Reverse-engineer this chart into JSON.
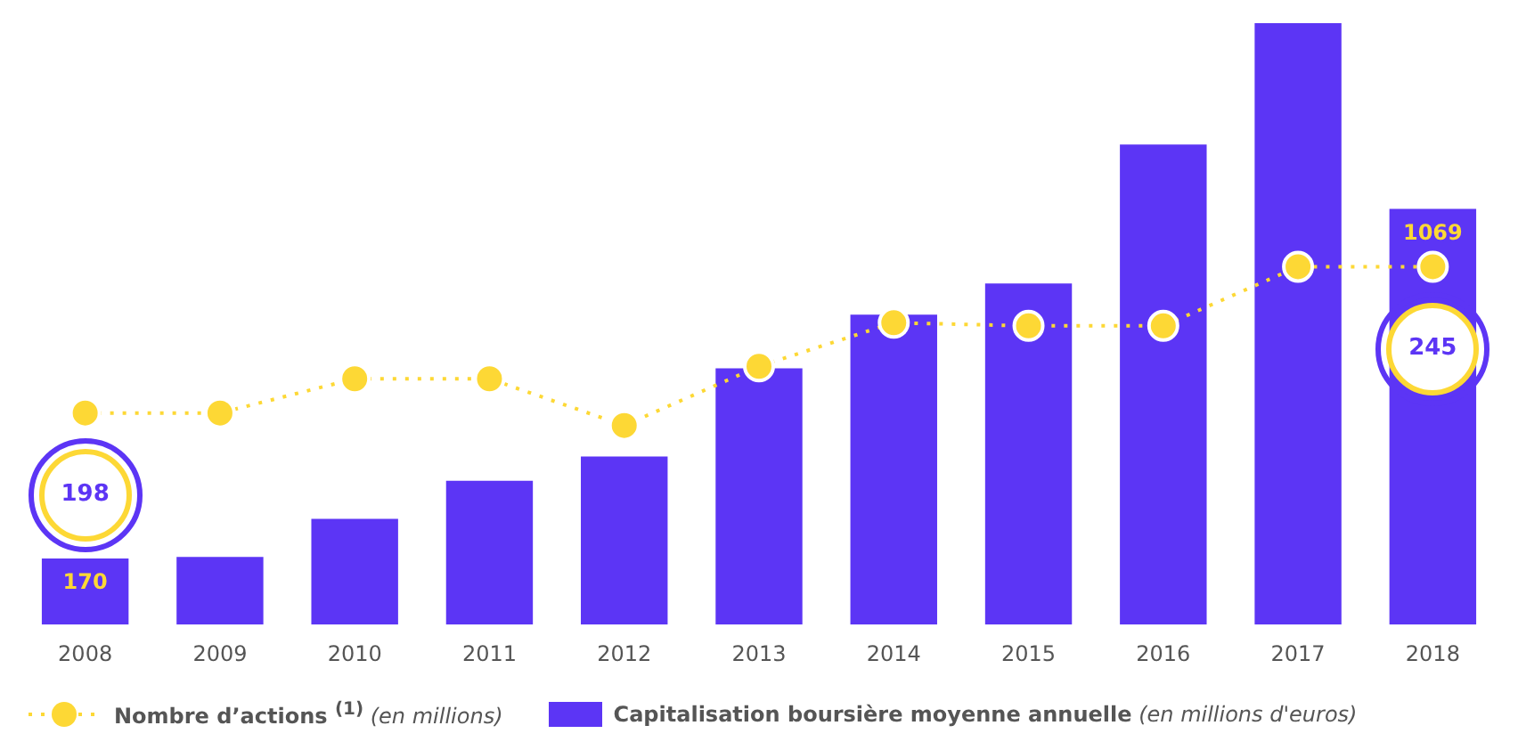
{
  "chart_data": {
    "type": "bar",
    "categories": [
      "2008",
      "2009",
      "2010",
      "2011",
      "2012",
      "2013",
      "2014",
      "2015",
      "2016",
      "2017",
      "2018"
    ],
    "series": [
      {
        "name": "Nombre d’actions $^{(1)}$ (en millions)",
        "type": "line",
        "axis": "y2",
        "color": "#fdd835",
        "values": [
          198,
          198,
          209,
          209,
          194,
          213,
          227,
          226,
          226,
          245,
          245
        ],
        "value_labels": [
          "198",
          null,
          null,
          null,
          null,
          null,
          null,
          null,
          null,
          null,
          "245"
        ]
      },
      {
        "name": "Capitalisation boursière moyenne annuelle (en millions d'euros)",
        "color": "#5c35f5",
        "values": [
          170,
          174,
          272,
          370,
          432,
          659,
          797,
          877,
          1234,
          1546,
          1069
        ],
        "value_labels": [
          "170",
          null,
          null,
          null,
          null,
          null,
          null,
          null,
          null,
          null,
          "1069"
        ]
      }
    ],
    "ylim": [
      0,
      1560
    ],
    "y2lim": [
      130,
      325
    ],
    "legend": "bottom",
    "grid": false,
    "marker": "circle",
    "line_style": "dotted"
  }
}
